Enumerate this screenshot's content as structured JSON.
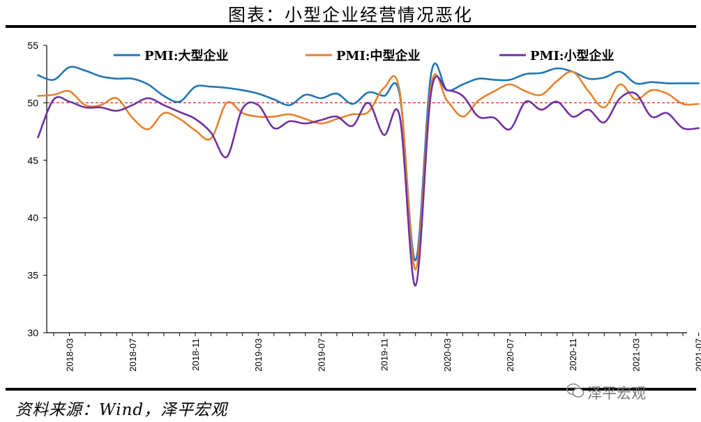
{
  "title": "图表：小型企业经营情况恶化",
  "source": "资料来源：Wind，泽平宏观",
  "watermark": "泽平宏观",
  "watermark_icon": "wechat-icon",
  "chart_data": {
    "type": "line",
    "x": [
      "2018-01",
      "2018-02",
      "2018-03",
      "2018-04",
      "2018-05",
      "2018-06",
      "2018-07",
      "2018-08",
      "2018-09",
      "2018-10",
      "2018-11",
      "2018-12",
      "2019-01",
      "2019-02",
      "2019-03",
      "2019-04",
      "2019-05",
      "2019-06",
      "2019-07",
      "2019-08",
      "2019-09",
      "2019-10",
      "2019-11",
      "2019-12",
      "2020-01",
      "2020-02",
      "2020-03",
      "2020-04",
      "2020-05",
      "2020-06",
      "2020-07",
      "2020-08",
      "2020-09",
      "2020-10",
      "2020-11",
      "2020-12",
      "2021-01",
      "2021-02",
      "2021-03",
      "2021-04",
      "2021-05",
      "2021-06",
      "2021-07"
    ],
    "xticks": [
      "2018-03",
      "2018-07",
      "2018-11",
      "2019-03",
      "2019-07",
      "2019-11",
      "2020-03",
      "2020-07",
      "2020-11",
      "2021-03",
      "2021-07"
    ],
    "ylim": [
      30,
      55
    ],
    "yticks": [
      30,
      35,
      40,
      45,
      50,
      55
    ],
    "reference_line": 50,
    "reference_color": "#e02020",
    "legend_position": "top",
    "series": [
      {
        "name": "PMI:大型企业",
        "color": "#1f77b4",
        "values": [
          52.4,
          52.0,
          53.1,
          52.8,
          52.3,
          52.1,
          52.1,
          51.6,
          50.6,
          50.1,
          51.4,
          51.4,
          51.3,
          51.1,
          50.8,
          50.3,
          49.8,
          50.7,
          50.4,
          50.8,
          49.9,
          50.9,
          50.6,
          50.7,
          36.3,
          52.6,
          51.1,
          51.6,
          52.1,
          52.0,
          52.0,
          52.5,
          52.6,
          53.0,
          52.7,
          52.1,
          52.2,
          52.7,
          51.7,
          51.8,
          51.7,
          51.7,
          51.7
        ]
      },
      {
        "name": "PMI:中型企业",
        "color": "#e6822b",
        "values": [
          50.6,
          50.7,
          51.0,
          49.8,
          49.8,
          50.4,
          48.7,
          47.7,
          49.1,
          48.6,
          47.6,
          46.9,
          50.0,
          49.1,
          48.8,
          48.8,
          49.0,
          48.6,
          48.2,
          48.6,
          49.0,
          49.2,
          51.3,
          51.0,
          35.5,
          51.6,
          50.2,
          48.8,
          50.2,
          51.0,
          51.6,
          51.0,
          50.7,
          51.9,
          52.7,
          51.0,
          49.6,
          51.6,
          50.3,
          51.1,
          50.8,
          49.9,
          49.9
        ]
      },
      {
        "name": "PMI:小型企业",
        "color": "#7030a0",
        "values": [
          47.0,
          50.3,
          50.1,
          49.6,
          49.6,
          49.3,
          49.8,
          50.4,
          49.8,
          49.2,
          48.6,
          47.4,
          45.3,
          49.5,
          49.8,
          47.8,
          48.4,
          48.2,
          48.5,
          48.8,
          48.0,
          50.0,
          47.2,
          48.8,
          34.1,
          51.0,
          51.1,
          50.6,
          48.8,
          48.7,
          47.7,
          50.1,
          49.4,
          50.1,
          48.8,
          49.4,
          48.3,
          50.4,
          50.8,
          48.8,
          49.1,
          47.8,
          47.8
        ]
      }
    ]
  }
}
